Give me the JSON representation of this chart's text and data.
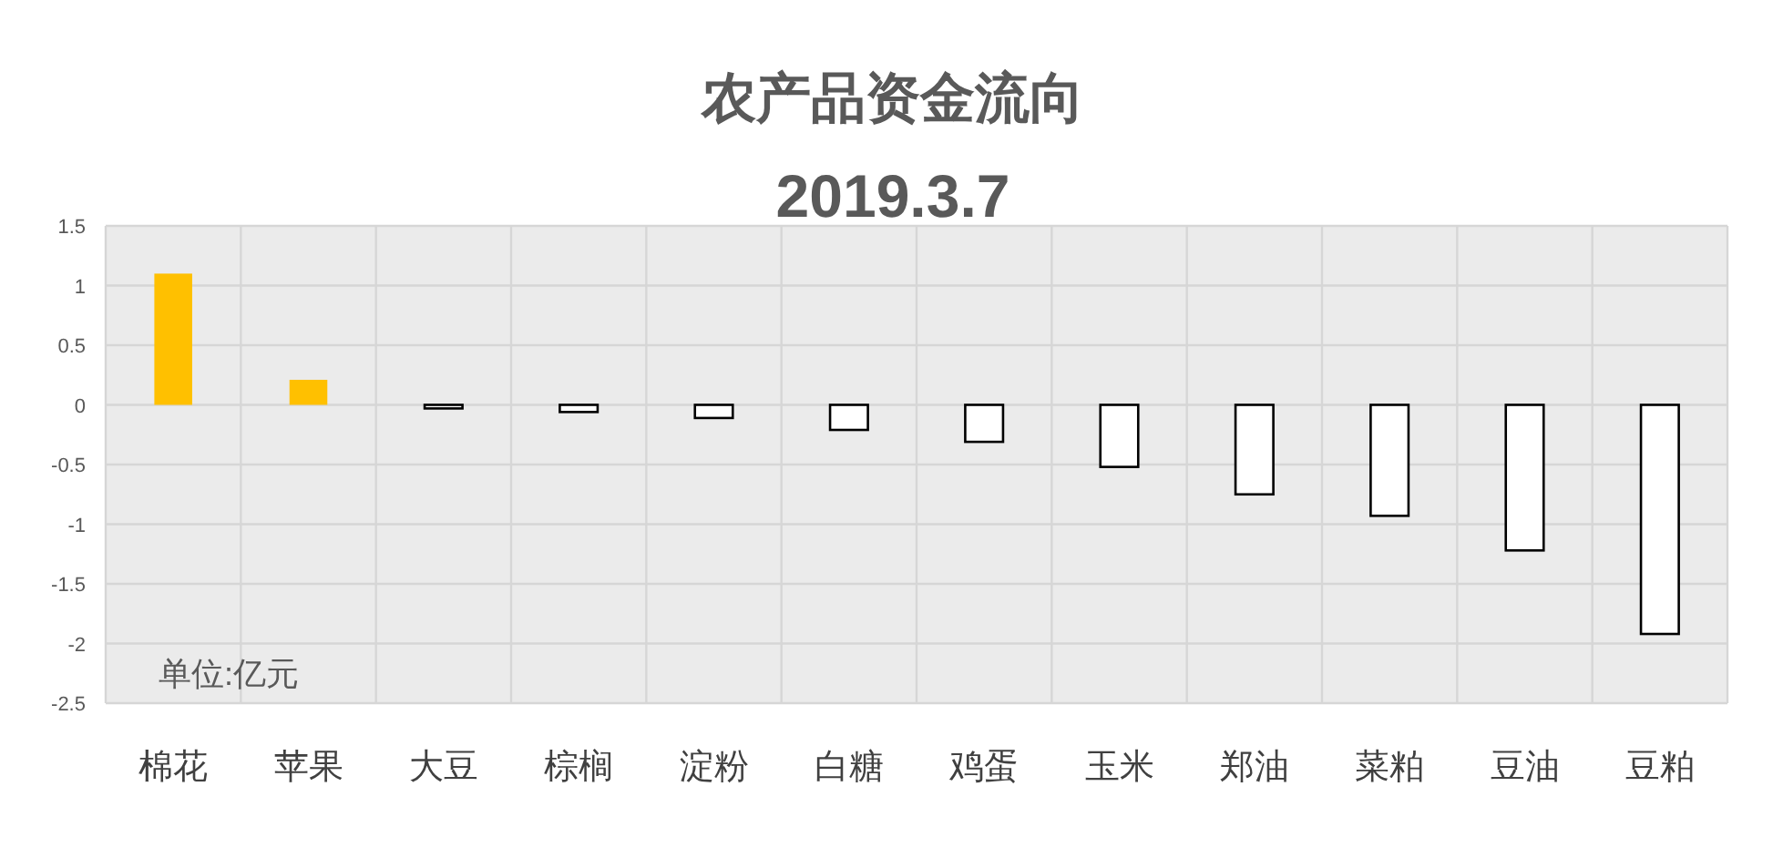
{
  "chart_data": {
    "type": "bar",
    "title": "农产品资金流向",
    "subtitle": "2019.3.7",
    "categories": [
      "棉花",
      "苹果",
      "大豆",
      "棕榈",
      "淀粉",
      "白糖",
      "鸡蛋",
      "玉米",
      "郑油",
      "菜粕",
      "豆油",
      "豆粕"
    ],
    "values": [
      1.1,
      0.21,
      -0.03,
      -0.06,
      -0.11,
      -0.21,
      -0.31,
      -0.52,
      -0.75,
      -0.93,
      -1.22,
      -1.92
    ],
    "colors": [
      "#ffc000",
      "#ffc000",
      "#ffffff",
      "#ffffff",
      "#ffffff",
      "#ffffff",
      "#ffffff",
      "#ffffff",
      "#ffffff",
      "#ffffff",
      "#ffffff",
      "#ffffff"
    ],
    "ylim": [
      -2.5,
      1.5
    ],
    "yticks": [
      -2.5,
      -2,
      -1.5,
      -1,
      -0.5,
      0,
      0.5,
      1,
      1.5
    ],
    "grid": true,
    "annotations": [
      "单位:亿元"
    ]
  }
}
